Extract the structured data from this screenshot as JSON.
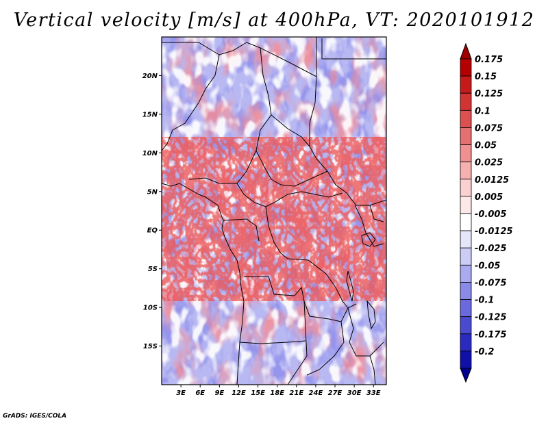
{
  "title": "Vertical velocity [m/s] at 400hPa, VT: 2020101912",
  "footer": "GrADS: IGES/COLA",
  "map": {
    "region": "Central and West-Central Africa",
    "lon_range": [
      0,
      35
    ],
    "lat_range": [
      -20,
      25
    ],
    "lat_ticks": [
      {
        "value": 20,
        "label": "20N"
      },
      {
        "value": 15,
        "label": "15N"
      },
      {
        "value": 10,
        "label": "10N"
      },
      {
        "value": 5,
        "label": "5N"
      },
      {
        "value": 0,
        "label": "EQ"
      },
      {
        "value": -5,
        "label": "5S"
      },
      {
        "value": -10,
        "label": "10S"
      },
      {
        "value": -15,
        "label": "15S"
      }
    ],
    "lon_ticks": [
      {
        "value": 3,
        "label": "3E"
      },
      {
        "value": 6,
        "label": "6E"
      },
      {
        "value": 9,
        "label": "9E"
      },
      {
        "value": 12,
        "label": "12E"
      },
      {
        "value": 15,
        "label": "15E"
      },
      {
        "value": 18,
        "label": "18E"
      },
      {
        "value": 21,
        "label": "21E"
      },
      {
        "value": 24,
        "label": "24E"
      },
      {
        "value": 27,
        "label": "27E"
      },
      {
        "value": 30,
        "label": "30E"
      },
      {
        "value": 33,
        "label": "33E"
      }
    ]
  },
  "colorbar": {
    "levels": [
      {
        "label": "0.175",
        "color": "#b40000"
      },
      {
        "label": "0.15",
        "color": "#c41a1a"
      },
      {
        "label": "0.125",
        "color": "#d23434"
      },
      {
        "label": "0.1",
        "color": "#dc5050"
      },
      {
        "label": "0.075",
        "color": "#e67070"
      },
      {
        "label": "0.05",
        "color": "#f09090"
      },
      {
        "label": "0.025",
        "color": "#f6b0b0"
      },
      {
        "label": "0.0125",
        "color": "#fad0d0"
      },
      {
        "label": "0.005",
        "color": "#fde8e8"
      },
      {
        "label": "-0.005",
        "color": "#ffffff"
      },
      {
        "label": "-0.0125",
        "color": "#e6e6fa"
      },
      {
        "label": "-0.025",
        "color": "#ccccf6"
      },
      {
        "label": "-0.05",
        "color": "#aaaaf0"
      },
      {
        "label": "-0.075",
        "color": "#8a8ae8"
      },
      {
        "label": "-0.1",
        "color": "#6a6ade"
      },
      {
        "label": "-0.125",
        "color": "#4a4ad0"
      },
      {
        "label": "-0.175",
        "color": "#2a2ac0"
      },
      {
        "label": "-0.2",
        "color": "#1010a8"
      }
    ],
    "top_color": "#a00000",
    "bottom_color": "#000090"
  }
}
